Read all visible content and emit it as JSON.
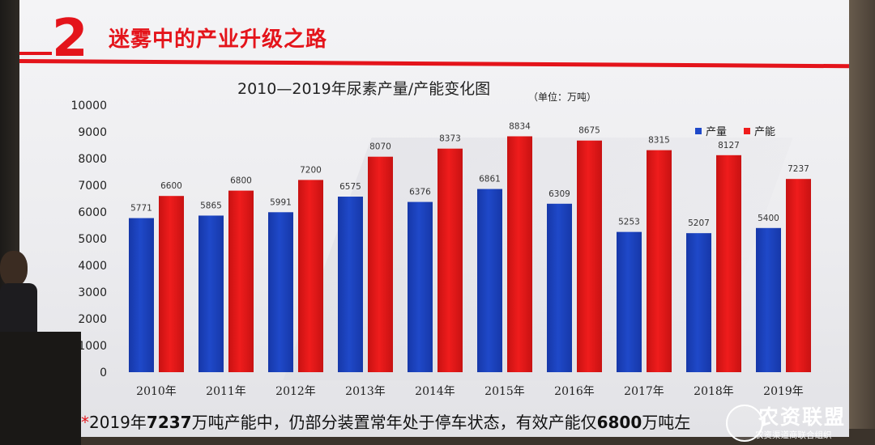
{
  "slide": {
    "section_number": "2",
    "section_title": "迷雾中的产业升级之路"
  },
  "chart_data": {
    "type": "bar",
    "title": "2010—2019年尿素产量/产能变化图",
    "unit": "（单位：万吨）",
    "categories": [
      "2010年",
      "2011年",
      "2012年",
      "2013年",
      "2014年",
      "2015年",
      "2016年",
      "2017年",
      "2018年",
      "2019年"
    ],
    "series": [
      {
        "name": "产量",
        "color": "#1f49c9",
        "values": [
          5771,
          5865,
          5991,
          6575,
          6376,
          6861,
          6309,
          5253,
          5207,
          5400
        ]
      },
      {
        "name": "产能",
        "color": "#ef1c1c",
        "values": [
          6600,
          6800,
          7200,
          8070,
          8373,
          8834,
          8675,
          8315,
          8127,
          7237
        ]
      }
    ],
    "ylim": [
      0,
      10000
    ],
    "yticks": [
      0,
      1000,
      2000,
      3000,
      4000,
      5000,
      6000,
      7000,
      8000,
      9000,
      10000
    ],
    "legend_position": "top-right",
    "grid": false
  },
  "footnote": {
    "star": "*",
    "part1": "2019年",
    "bold1": "7237",
    "part2": "万吨产能中，仍",
    "part3": "部分装置常年处于停车状态，有效产能仅",
    "bold2": "6800",
    "part4": "万吨左"
  },
  "watermark": {
    "title": "农资联盟",
    "subtitle": "农资渠道商联合组织"
  }
}
